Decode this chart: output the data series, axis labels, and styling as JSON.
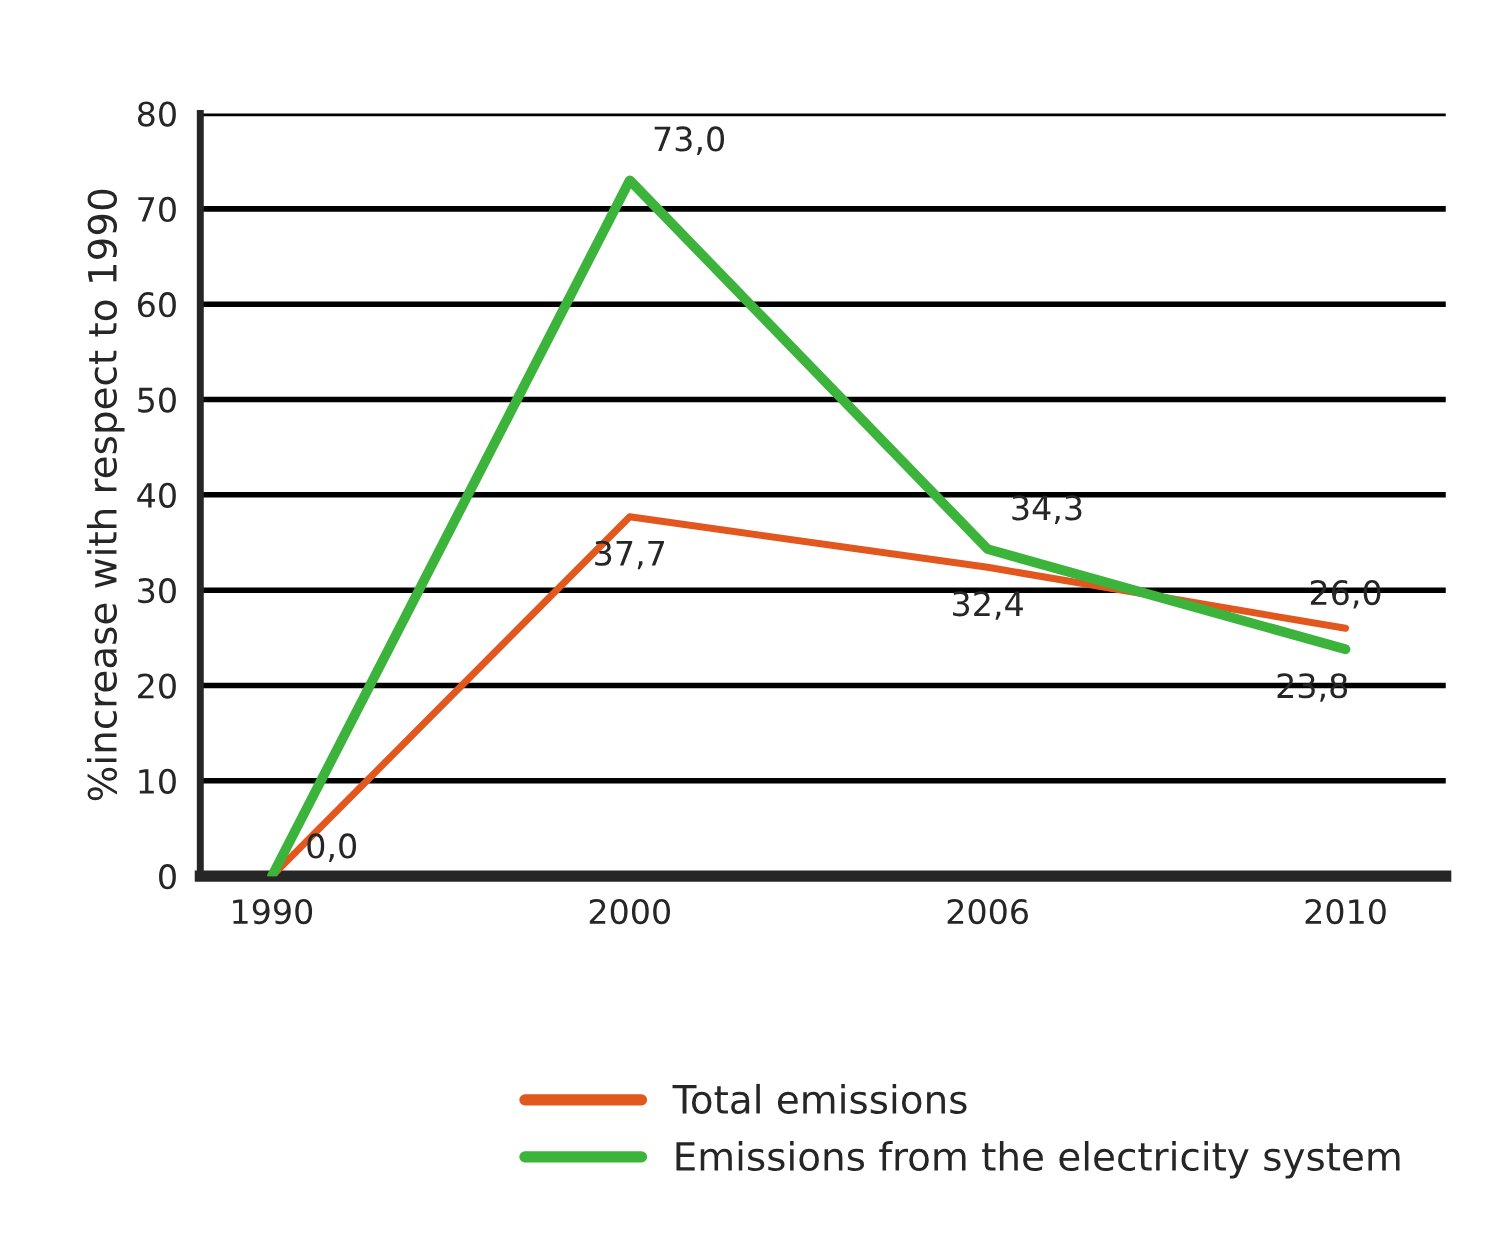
{
  "chart_data": {
    "type": "line",
    "ylabel": "%increase with respect to 1990",
    "categories": [
      "1990",
      "2000",
      "2006",
      "2010"
    ],
    "series": [
      {
        "name": "Total emissions",
        "color": "#e2571e",
        "values": [
          0.0,
          37.7,
          32.4,
          26.0
        ],
        "value_labels": [
          "0,0",
          "37,7",
          "32,4",
          "26,0"
        ]
      },
      {
        "name": "Emissions from the electricity system",
        "color": "#3cb43c",
        "values": [
          0.0,
          73.0,
          34.3,
          23.8
        ],
        "value_labels": [
          null,
          "73,0",
          "34,3",
          "23,8"
        ]
      }
    ],
    "ylim": [
      0,
      80
    ],
    "yticks": [
      0,
      10,
      20,
      30,
      40,
      50,
      60,
      70,
      80
    ],
    "grid": "y",
    "legend": "bottom",
    "marker": "none",
    "line_style": "solid"
  }
}
